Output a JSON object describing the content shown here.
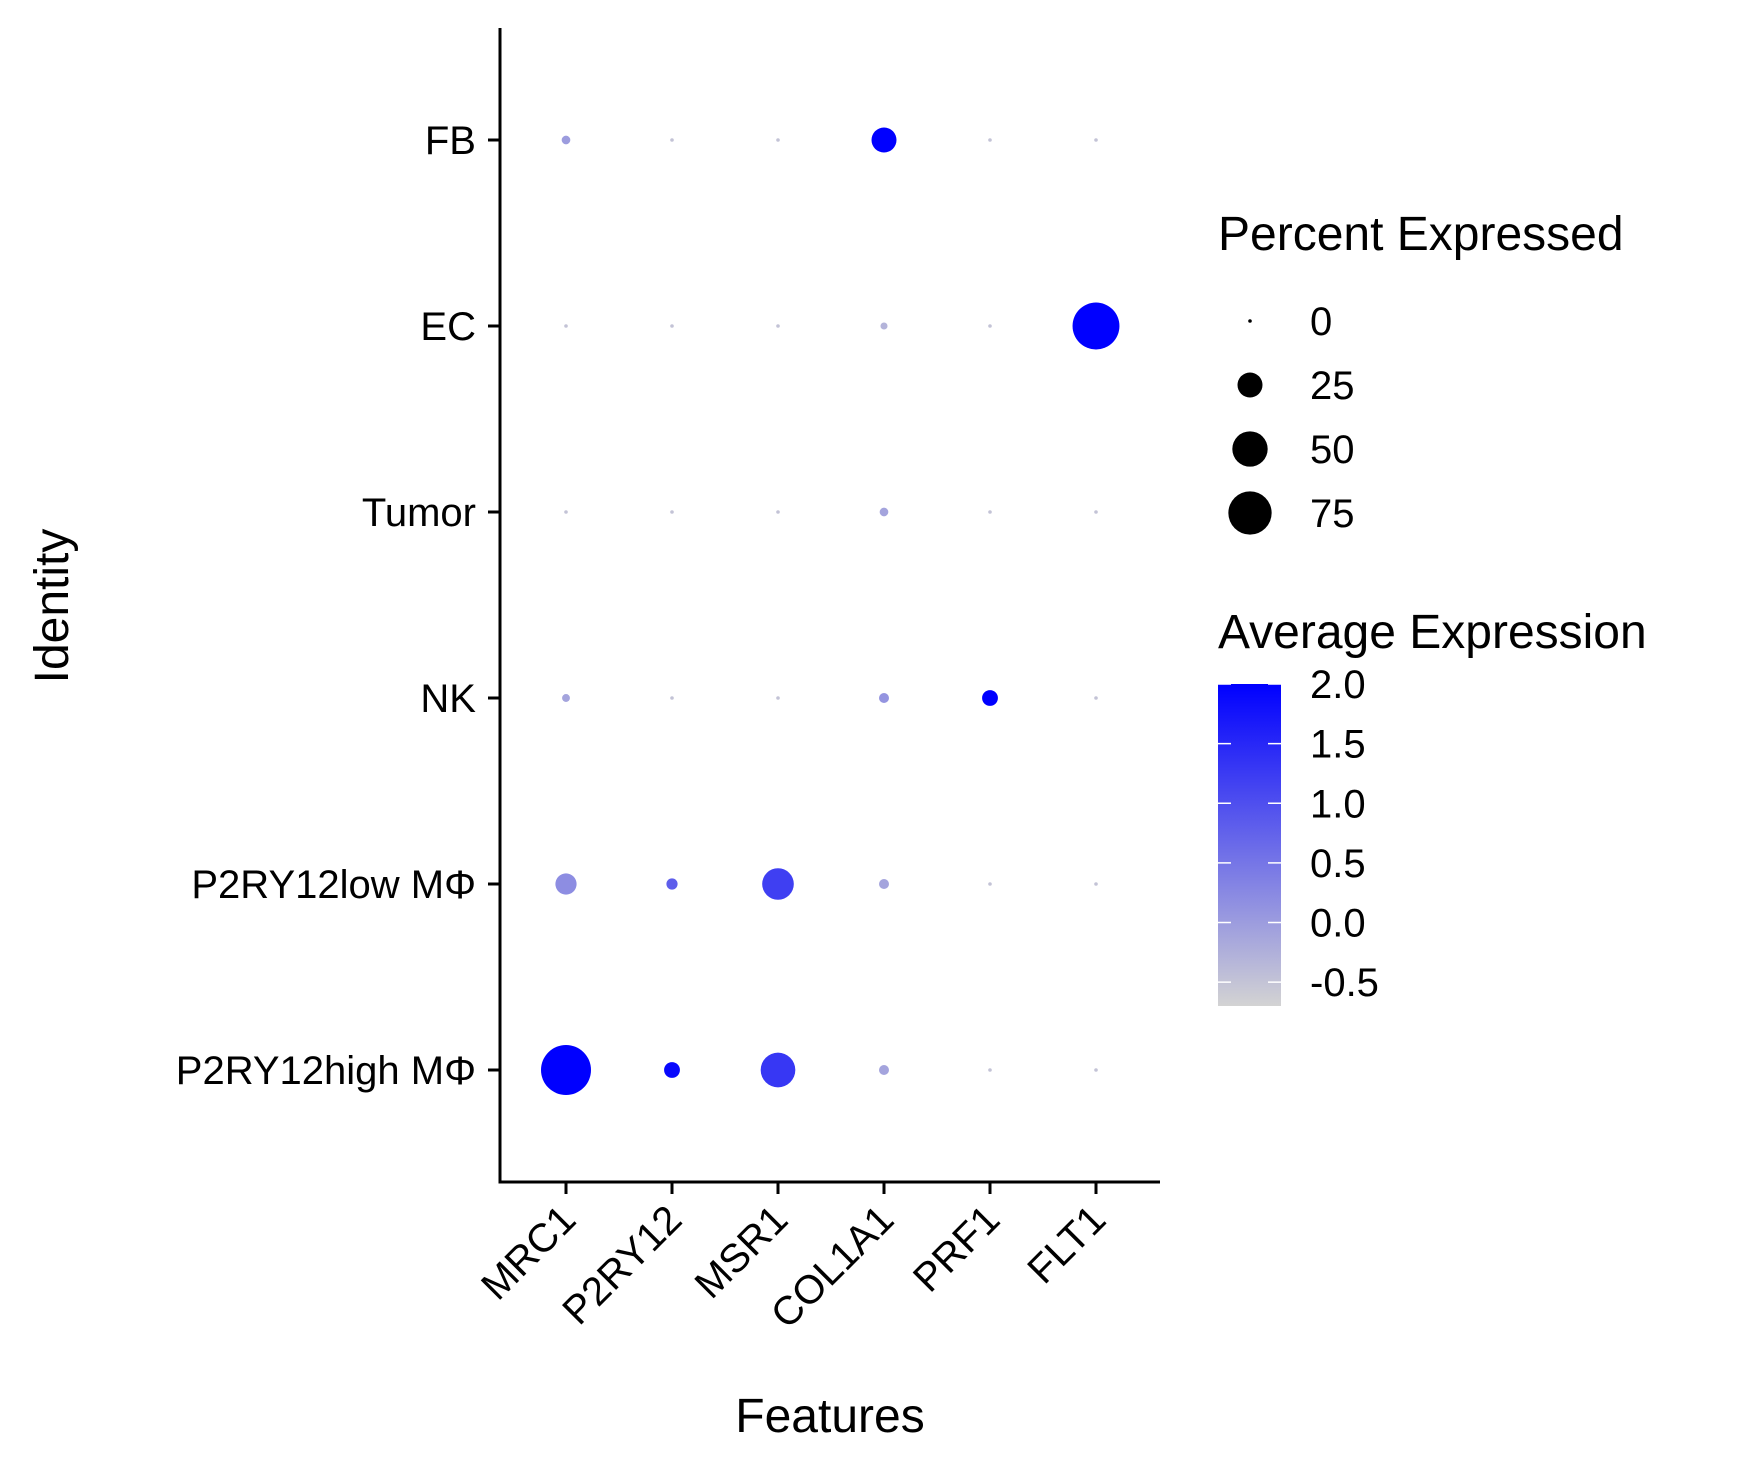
{
  "chart_data": {
    "type": "dotplot",
    "title": "",
    "xlabel": "Features",
    "ylabel": "Identity",
    "features": [
      "MRC1",
      "P2RY12",
      "MSR1",
      "COL1A1",
      "PRF1",
      "FLT1"
    ],
    "identities": [
      "FB",
      "EC",
      "Tumor",
      "NK",
      "P2RY12low MΦ",
      "P2RY12high MΦ"
    ],
    "size_legend": {
      "title": "Percent Expressed",
      "values": [
        0,
        25,
        50,
        75
      ],
      "labels": [
        "0",
        "25",
        "50",
        "75"
      ]
    },
    "color_legend": {
      "title": "Average Expression",
      "range": [
        -0.7,
        2.0
      ],
      "ticks": [
        2.0,
        1.5,
        1.0,
        0.5,
        0.0,
        -0.5
      ],
      "labels": [
        "2.0",
        "1.5",
        "1.0",
        "0.5",
        "0.0",
        "-0.5"
      ],
      "low_color": "#d3d3d3",
      "high_color": "#0000ff"
    },
    "points": [
      {
        "identity": "FB",
        "feature": "MRC1",
        "pct": 3,
        "avg": 0.0
      },
      {
        "identity": "FB",
        "feature": "P2RY12",
        "pct": 0.5,
        "avg": -0.5
      },
      {
        "identity": "FB",
        "feature": "MSR1",
        "pct": 0.5,
        "avg": -0.5
      },
      {
        "identity": "FB",
        "feature": "COL1A1",
        "pct": 25,
        "avg": 2.0
      },
      {
        "identity": "FB",
        "feature": "PRF1",
        "pct": 0.5,
        "avg": -0.5
      },
      {
        "identity": "FB",
        "feature": "FLT1",
        "pct": 0.5,
        "avg": -0.5
      },
      {
        "identity": "EC",
        "feature": "MRC1",
        "pct": 0.5,
        "avg": -0.5
      },
      {
        "identity": "EC",
        "feature": "P2RY12",
        "pct": 0.5,
        "avg": -0.5
      },
      {
        "identity": "EC",
        "feature": "MSR1",
        "pct": 0.5,
        "avg": -0.5
      },
      {
        "identity": "EC",
        "feature": "COL1A1",
        "pct": 2,
        "avg": -0.3
      },
      {
        "identity": "EC",
        "feature": "PRF1",
        "pct": 0.5,
        "avg": -0.5
      },
      {
        "identity": "EC",
        "feature": "FLT1",
        "pct": 88,
        "avg": 2.0
      },
      {
        "identity": "Tumor",
        "feature": "MRC1",
        "pct": 0.5,
        "avg": -0.5
      },
      {
        "identity": "Tumor",
        "feature": "P2RY12",
        "pct": 0.5,
        "avg": -0.5
      },
      {
        "identity": "Tumor",
        "feature": "MSR1",
        "pct": 0.5,
        "avg": -0.5
      },
      {
        "identity": "Tumor",
        "feature": "COL1A1",
        "pct": 3,
        "avg": -0.1
      },
      {
        "identity": "Tumor",
        "feature": "PRF1",
        "pct": 0.5,
        "avg": -0.5
      },
      {
        "identity": "Tumor",
        "feature": "FLT1",
        "pct": 0.5,
        "avg": -0.5
      },
      {
        "identity": "NK",
        "feature": "MRC1",
        "pct": 2.5,
        "avg": -0.1
      },
      {
        "identity": "NK",
        "feature": "P2RY12",
        "pct": 0.5,
        "avg": -0.5
      },
      {
        "identity": "NK",
        "feature": "MSR1",
        "pct": 0.5,
        "avg": -0.5
      },
      {
        "identity": "NK",
        "feature": "COL1A1",
        "pct": 4,
        "avg": 0.1
      },
      {
        "identity": "NK",
        "feature": "PRF1",
        "pct": 10,
        "avg": 2.0
      },
      {
        "identity": "NK",
        "feature": "FLT1",
        "pct": 0.5,
        "avg": -0.5
      },
      {
        "identity": "P2RY12low MΦ",
        "feature": "MRC1",
        "pct": 18,
        "avg": 0.2
      },
      {
        "identity": "P2RY12low MΦ",
        "feature": "P2RY12",
        "pct": 5,
        "avg": 0.8
      },
      {
        "identity": "P2RY12low MΦ",
        "feature": "MSR1",
        "pct": 40,
        "avg": 1.2
      },
      {
        "identity": "P2RY12low MΦ",
        "feature": "COL1A1",
        "pct": 4,
        "avg": -0.1
      },
      {
        "identity": "P2RY12low MΦ",
        "feature": "PRF1",
        "pct": 0.5,
        "avg": -0.5
      },
      {
        "identity": "P2RY12low MΦ",
        "feature": "FLT1",
        "pct": 0.5,
        "avg": -0.5
      },
      {
        "identity": "P2RY12high MΦ",
        "feature": "MRC1",
        "pct": 100,
        "avg": 2.0
      },
      {
        "identity": "P2RY12high MΦ",
        "feature": "P2RY12",
        "pct": 10,
        "avg": 1.9
      },
      {
        "identity": "P2RY12high MΦ",
        "feature": "MSR1",
        "pct": 48,
        "avg": 1.3
      },
      {
        "identity": "P2RY12high MΦ",
        "feature": "COL1A1",
        "pct": 4,
        "avg": -0.1
      },
      {
        "identity": "P2RY12high MΦ",
        "feature": "PRF1",
        "pct": 0.5,
        "avg": -0.5
      },
      {
        "identity": "P2RY12high MΦ",
        "feature": "FLT1",
        "pct": 0.5,
        "avg": -0.5
      }
    ]
  }
}
